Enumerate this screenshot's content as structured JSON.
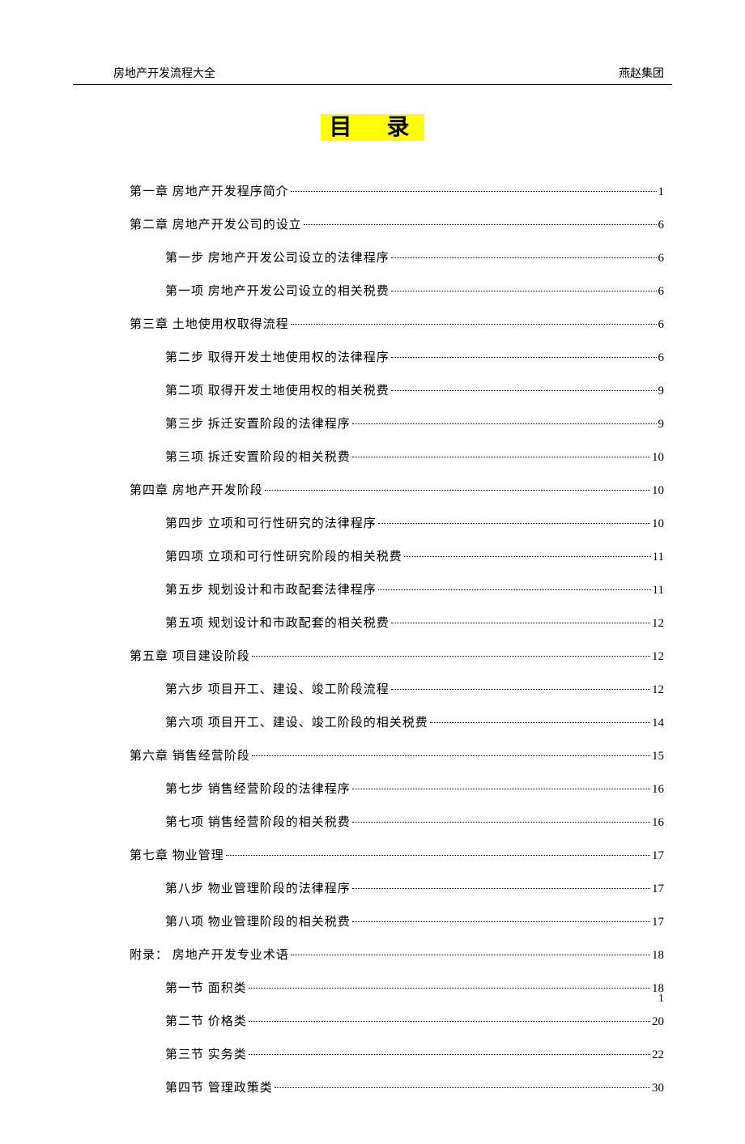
{
  "header": {
    "left": "房地产开发流程大全",
    "right": "燕赵集团"
  },
  "title": "目 录",
  "highlight_color": "#ffff00",
  "text_color": "#000000",
  "background_color": "#ffffff",
  "page_number": "1",
  "toc": {
    "entries": [
      {
        "level": 1,
        "label": "第一章  房地产开发程序简介",
        "page": "1"
      },
      {
        "level": 1,
        "label": "第二章  房地产开发公司的设立",
        "page": "6"
      },
      {
        "level": 2,
        "label": "第一步 房地产开发公司设立的法律程序",
        "page": "6"
      },
      {
        "level": 2,
        "label": "第一项 房地产开发公司设立的相关税费",
        "page": "6"
      },
      {
        "level": 1,
        "label": "第三章  土地使用权取得流程",
        "page": "6"
      },
      {
        "level": 2,
        "label": "第二步 取得开发土地使用权的法律程序",
        "page": "6"
      },
      {
        "level": 2,
        "label": "第二项 取得开发土地使用权的相关税费",
        "page": "9"
      },
      {
        "level": 2,
        "label": "第三步 拆迁安置阶段的法律程序",
        "page": "9"
      },
      {
        "level": 2,
        "label": "第三项 拆迁安置阶段的相关税费",
        "page": "10"
      },
      {
        "level": 1,
        "label": "第四章  房地产开发阶段",
        "page": "10"
      },
      {
        "level": 2,
        "label": "第四步 立项和可行性研究的法律程序",
        "page": "10"
      },
      {
        "level": 2,
        "label": "第四项 立项和可行性研究阶段的相关税费",
        "page": "11"
      },
      {
        "level": 2,
        "label": "第五步 规划设计和市政配套法律程序",
        "page": "11"
      },
      {
        "level": 2,
        "label": "第五项 规划设计和市政配套的相关税费",
        "page": "12"
      },
      {
        "level": 1,
        "label": "第五章  项目建设阶段",
        "page": "12"
      },
      {
        "level": 2,
        "label": "第六步 项目开工、建设、竣工阶段流程",
        "page": "12"
      },
      {
        "level": 2,
        "label": "第六项 项目开工、建设、竣工阶段的相关税费",
        "page": "14"
      },
      {
        "level": 1,
        "label": "第六章  销售经营阶段",
        "page": "15"
      },
      {
        "level": 2,
        "label": "第七步 销售经营阶段的法律程序",
        "page": "16"
      },
      {
        "level": 2,
        "label": "第七项 销售经营阶段的相关税费",
        "page": "16"
      },
      {
        "level": 1,
        "label": "第七章  物业管理",
        "page": "17"
      },
      {
        "level": 2,
        "label": "第八步 物业管理阶段的法律程序",
        "page": "17"
      },
      {
        "level": 2,
        "label": "第八项 物业管理阶段的相关税费",
        "page": "17"
      },
      {
        "level": 1,
        "label": "附录： 房地产开发专业术语",
        "page": "18"
      },
      {
        "level": 2,
        "label": "第一节 面积类",
        "page": "18"
      },
      {
        "level": 2,
        "label": "第二节 价格类",
        "page": "20"
      },
      {
        "level": 2,
        "label": "第三节 实务类",
        "page": "22"
      },
      {
        "level": 2,
        "label": "第四节 管理政策类",
        "page": "30"
      }
    ]
  }
}
